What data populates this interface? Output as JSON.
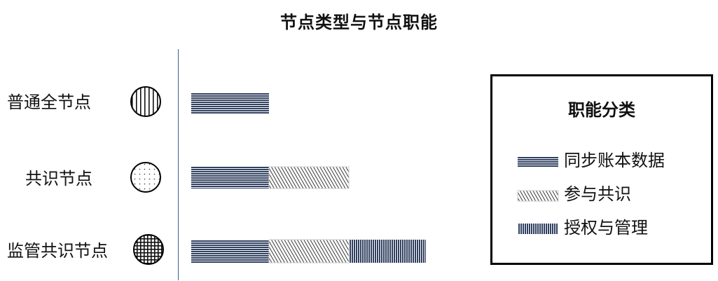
{
  "title": "节点类型与节点职能",
  "nodes": [
    {
      "label": "普通全节点",
      "icon": "vertical-lines-circle-icon",
      "functions": [
        "同步账本数据"
      ]
    },
    {
      "label": "共识节点",
      "icon": "dotted-circle-icon",
      "functions": [
        "同步账本数据",
        "参与共识"
      ]
    },
    {
      "label": "监管共识节点",
      "icon": "grid-circle-icon",
      "functions": [
        "同步账本数据",
        "参与共识",
        "授权与管理"
      ]
    }
  ],
  "legend": {
    "title": "职能分类",
    "items": [
      {
        "label": "同步账本数据",
        "pattern": "horizontal"
      },
      {
        "label": "参与共识",
        "pattern": "diagonal"
      },
      {
        "label": "授权与管理",
        "pattern": "vertical"
      }
    ]
  },
  "colors": {
    "bar": "#2f3f5f",
    "axis": "#3f5f9a"
  }
}
